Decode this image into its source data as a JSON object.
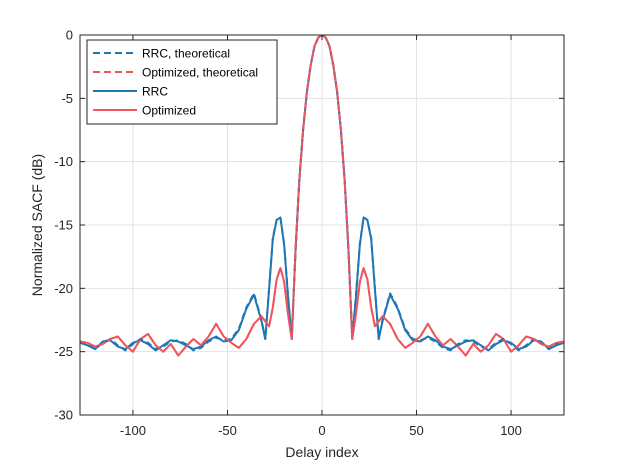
{
  "chart_data": {
    "type": "line",
    "title": "",
    "xlabel": "Delay index",
    "ylabel": "Normalized SACF (dB)",
    "xlim": [
      -128,
      128
    ],
    "ylim": [
      -30,
      0
    ],
    "xticks": [
      -100,
      -50,
      0,
      50,
      100
    ],
    "xtick_labels": [
      "-100",
      "-50",
      "0",
      "50",
      "100"
    ],
    "yticks": [
      -30,
      -25,
      -20,
      -15,
      -10,
      -5,
      0
    ],
    "ytick_labels": [
      "-30",
      "-25",
      "-20",
      "-15",
      "-10",
      "-5",
      "0"
    ],
    "grid": true,
    "legend_position": "top-left",
    "series": [
      {
        "name": "RRC, theoretical",
        "color": "#1f77b4",
        "dash": "dashed",
        "x": [
          -128,
          -124,
          -120,
          -116,
          -112,
          -108,
          -104,
          -100,
          -96,
          -92,
          -88,
          -84,
          -80,
          -76,
          -72,
          -68,
          -64,
          -60,
          -56,
          -52,
          -48,
          -44,
          -40,
          -36,
          -32,
          -30,
          -28,
          -26,
          -24,
          -22,
          -20,
          -18,
          -16,
          -14,
          -12,
          -10,
          -8,
          -6,
          -4,
          -2,
          0,
          2,
          4,
          6,
          8,
          10,
          12,
          14,
          16,
          18,
          20,
          22,
          24,
          26,
          28,
          30,
          32,
          36,
          40,
          44,
          48,
          52,
          56,
          60,
          64,
          68,
          72,
          76,
          80,
          84,
          88,
          92,
          96,
          100,
          104,
          108,
          112,
          116,
          120,
          124,
          128
        ],
        "y": [
          -24.2,
          -24.4,
          -24.8,
          -24.3,
          -24.0,
          -24.5,
          -24.9,
          -24.4,
          -24.0,
          -24.3,
          -24.8,
          -24.6,
          -24.2,
          -24.1,
          -24.4,
          -24.9,
          -24.7,
          -24.2,
          -23.9,
          -24.1,
          -24.0,
          -23.2,
          -21.5,
          -20.4,
          -22.5,
          -24.0,
          -20.0,
          -16.0,
          -14.6,
          -14.4,
          -16.5,
          -20.5,
          -24.0,
          -17.0,
          -11.5,
          -7.5,
          -4.5,
          -2.4,
          -0.9,
          -0.2,
          0.0,
          -0.2,
          -0.9,
          -2.4,
          -4.5,
          -7.5,
          -11.5,
          -17.0,
          -24.0,
          -20.5,
          -16.5,
          -14.4,
          -14.6,
          -16.0,
          -20.0,
          -24.0,
          -22.5,
          -20.4,
          -21.5,
          -23.2,
          -24.0,
          -24.1,
          -23.9,
          -24.2,
          -24.7,
          -24.9,
          -24.4,
          -24.1,
          -24.2,
          -24.6,
          -24.8,
          -24.3,
          -24.0,
          -24.4,
          -24.9,
          -24.5,
          -24.0,
          -24.3,
          -24.8,
          -24.4,
          -24.2
        ]
      },
      {
        "name": "Optimized, theoretical",
        "color": "#f0555c",
        "dash": "dashed",
        "x": [
          -128,
          -124,
          -120,
          -116,
          -112,
          -108,
          -104,
          -100,
          -96,
          -92,
          -88,
          -84,
          -80,
          -76,
          -72,
          -68,
          -64,
          -60,
          -56,
          -52,
          -48,
          -44,
          -40,
          -36,
          -32,
          -28,
          -26,
          -24,
          -22,
          -20,
          -18,
          -16,
          -14,
          -12,
          -10,
          -8,
          -6,
          -4,
          -2,
          0,
          2,
          4,
          6,
          8,
          10,
          12,
          14,
          16,
          18,
          20,
          22,
          24,
          26,
          28,
          32,
          36,
          40,
          44,
          48,
          52,
          56,
          60,
          64,
          68,
          72,
          76,
          80,
          84,
          88,
          92,
          96,
          100,
          104,
          108,
          112,
          116,
          120,
          124,
          128
        ],
        "y": [
          -24.2,
          -24.3,
          -24.6,
          -24.4,
          -24.0,
          -23.8,
          -24.5,
          -25.0,
          -24.0,
          -23.6,
          -24.5,
          -25.0,
          -24.4,
          -25.3,
          -24.6,
          -24.0,
          -24.5,
          -23.8,
          -22.8,
          -23.8,
          -24.3,
          -24.7,
          -24.0,
          -22.8,
          -22.2,
          -23.0,
          -21.5,
          -19.3,
          -18.4,
          -19.5,
          -22.0,
          -24.0,
          -17.0,
          -11.5,
          -7.5,
          -4.5,
          -2.4,
          -0.9,
          -0.2,
          0.0,
          -0.2,
          -0.9,
          -2.4,
          -4.5,
          -7.5,
          -11.5,
          -17.0,
          -24.0,
          -22.0,
          -19.5,
          -18.4,
          -19.3,
          -21.5,
          -23.0,
          -22.2,
          -22.8,
          -24.0,
          -24.7,
          -24.3,
          -23.8,
          -22.8,
          -23.8,
          -24.5,
          -24.0,
          -24.6,
          -25.3,
          -24.4,
          -25.0,
          -24.5,
          -23.6,
          -24.0,
          -25.0,
          -24.5,
          -23.8,
          -24.0,
          -24.4,
          -24.6,
          -24.3,
          -24.2
        ]
      },
      {
        "name": "RRC",
        "color": "#1f77b4",
        "dash": "solid",
        "x": [
          -128,
          -124,
          -120,
          -116,
          -112,
          -108,
          -104,
          -100,
          -96,
          -92,
          -88,
          -84,
          -80,
          -76,
          -72,
          -68,
          -64,
          -60,
          -56,
          -52,
          -48,
          -44,
          -40,
          -36,
          -32,
          -30,
          -28,
          -26,
          -24,
          -22,
          -20,
          -18,
          -16,
          -14,
          -12,
          -10,
          -8,
          -6,
          -4,
          -2,
          0,
          2,
          4,
          6,
          8,
          10,
          12,
          14,
          16,
          18,
          20,
          22,
          24,
          26,
          28,
          30,
          32,
          36,
          40,
          44,
          48,
          52,
          56,
          60,
          64,
          68,
          72,
          76,
          80,
          84,
          88,
          92,
          96,
          100,
          104,
          108,
          112,
          116,
          120,
          124,
          128
        ],
        "y": [
          -24.3,
          -24.5,
          -24.8,
          -24.2,
          -24.1,
          -24.6,
          -24.8,
          -24.3,
          -24.1,
          -24.4,
          -24.9,
          -24.5,
          -24.1,
          -24.2,
          -24.5,
          -24.8,
          -24.6,
          -24.1,
          -23.8,
          -24.2,
          -24.1,
          -23.3,
          -21.6,
          -20.5,
          -22.6,
          -24.0,
          -20.1,
          -16.1,
          -14.6,
          -14.4,
          -16.6,
          -20.6,
          -24.0,
          -17.0,
          -11.5,
          -7.5,
          -4.5,
          -2.4,
          -0.9,
          -0.2,
          0.0,
          -0.2,
          -0.9,
          -2.4,
          -4.5,
          -7.5,
          -11.5,
          -17.0,
          -24.0,
          -20.6,
          -16.6,
          -14.4,
          -14.6,
          -16.1,
          -20.1,
          -24.0,
          -22.6,
          -20.5,
          -21.6,
          -23.3,
          -24.1,
          -24.2,
          -23.8,
          -24.1,
          -24.6,
          -24.8,
          -24.5,
          -24.2,
          -24.1,
          -24.5,
          -24.9,
          -24.4,
          -24.1,
          -24.3,
          -24.8,
          -24.6,
          -24.1,
          -24.2,
          -24.8,
          -24.5,
          -24.3
        ]
      },
      {
        "name": "Optimized",
        "color": "#f0555c",
        "dash": "solid",
        "x": [
          -128,
          -124,
          -120,
          -116,
          -112,
          -108,
          -104,
          -100,
          -96,
          -92,
          -88,
          -84,
          -80,
          -76,
          -72,
          -68,
          -64,
          -60,
          -56,
          -52,
          -48,
          -44,
          -40,
          -36,
          -32,
          -28,
          -26,
          -24,
          -22,
          -20,
          -18,
          -16,
          -14,
          -12,
          -10,
          -8,
          -6,
          -4,
          -2,
          0,
          2,
          4,
          6,
          8,
          10,
          12,
          14,
          16,
          18,
          20,
          22,
          24,
          26,
          28,
          32,
          36,
          40,
          44,
          48,
          52,
          56,
          60,
          64,
          68,
          72,
          76,
          80,
          84,
          88,
          92,
          96,
          100,
          104,
          108,
          112,
          116,
          120,
          124,
          128
        ],
        "y": [
          -24.2,
          -24.3,
          -24.6,
          -24.4,
          -24.0,
          -23.8,
          -24.5,
          -25.0,
          -24.0,
          -23.6,
          -24.5,
          -25.0,
          -24.4,
          -25.3,
          -24.6,
          -24.0,
          -24.5,
          -23.8,
          -22.8,
          -23.8,
          -24.3,
          -24.7,
          -24.0,
          -22.8,
          -22.2,
          -23.0,
          -21.5,
          -19.3,
          -18.4,
          -19.5,
          -22.0,
          -24.0,
          -17.0,
          -11.5,
          -7.5,
          -4.5,
          -2.4,
          -0.9,
          -0.2,
          0.0,
          -0.2,
          -0.9,
          -2.4,
          -4.5,
          -7.5,
          -11.5,
          -17.0,
          -24.0,
          -22.0,
          -19.5,
          -18.4,
          -19.3,
          -21.5,
          -23.0,
          -22.2,
          -22.8,
          -24.0,
          -24.7,
          -24.3,
          -23.8,
          -22.8,
          -23.8,
          -24.5,
          -24.0,
          -24.6,
          -25.3,
          -24.4,
          -25.0,
          -24.5,
          -23.6,
          -24.0,
          -25.0,
          -24.5,
          -23.8,
          -24.0,
          -24.4,
          -24.6,
          -24.3,
          -24.2
        ]
      }
    ]
  }
}
